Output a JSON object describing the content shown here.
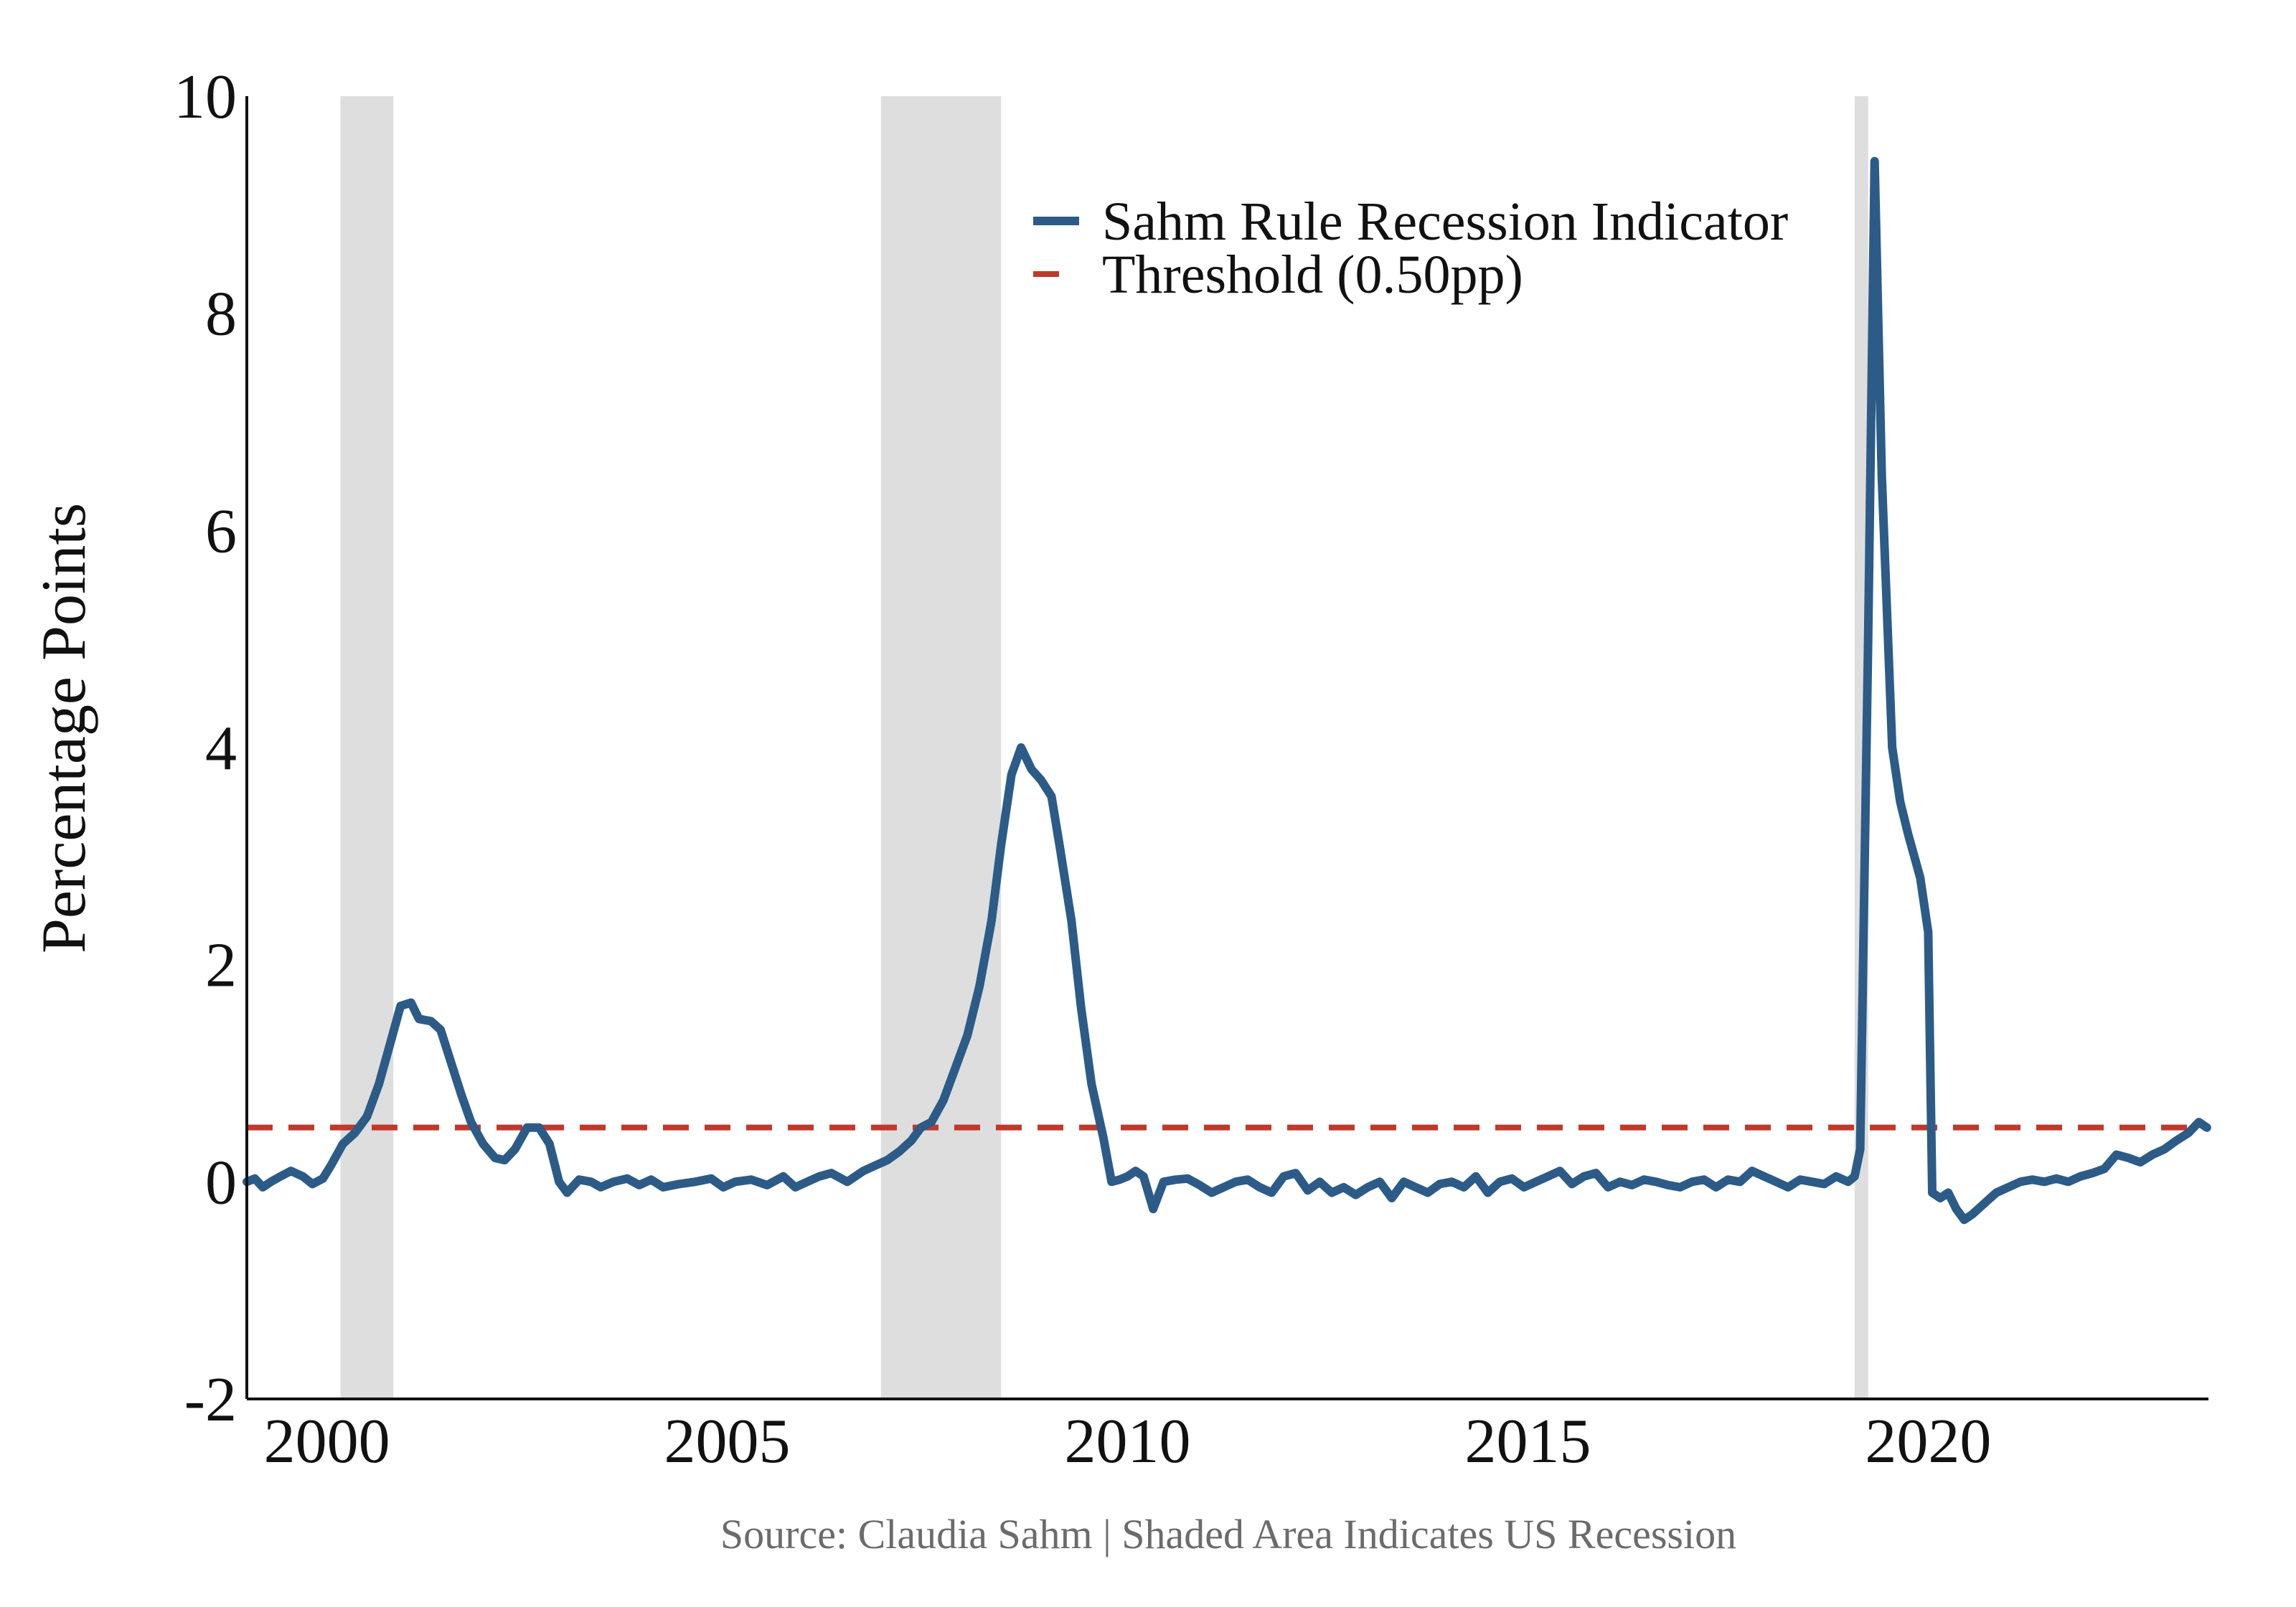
{
  "chart_data": {
    "type": "line",
    "title": "",
    "xlabel": "",
    "ylabel": "Percentage Points",
    "xlim": [
      1999.0,
      2023.5
    ],
    "ylim": [
      -2,
      10
    ],
    "x_ticks": [
      2000,
      2005,
      2010,
      2015,
      2020
    ],
    "x_tick_labels": [
      "2000",
      "2005",
      "2010",
      "2015",
      "2020"
    ],
    "y_ticks": [
      -2,
      0,
      2,
      4,
      6,
      8,
      10
    ],
    "y_tick_labels": [
      "-2",
      "0",
      "2",
      "4",
      "6",
      "8",
      "10"
    ],
    "grid": false,
    "legend_position": "top-right",
    "source": "Source: Claudia Sahm | Shaded Area Indicates US Recession",
    "recessions": [
      {
        "start": 2000.17,
        "end": 2000.83
      },
      {
        "start": 2006.92,
        "end": 2008.42
      },
      {
        "start": 2019.08,
        "end": 2019.25
      }
    ],
    "threshold": {
      "name": "Threshold (0.50pp)",
      "value": 0.5,
      "color": "#c0392b"
    },
    "series": [
      {
        "name": "Sahm Rule Recession Indicator",
        "color": "#2c5b87",
        "points": [
          [
            1999.0,
            0.0
          ],
          [
            1999.1,
            0.03
          ],
          [
            1999.2,
            -0.05
          ],
          [
            1999.3,
            0.0
          ],
          [
            1999.42,
            0.05
          ],
          [
            1999.55,
            0.1
          ],
          [
            1999.7,
            0.05
          ],
          [
            1999.82,
            -0.02
          ],
          [
            1999.95,
            0.03
          ],
          [
            2000.05,
            0.15
          ],
          [
            2000.2,
            0.35
          ],
          [
            2000.35,
            0.45
          ],
          [
            2000.5,
            0.6
          ],
          [
            2000.65,
            0.9
          ],
          [
            2000.8,
            1.3
          ],
          [
            2000.92,
            1.62
          ],
          [
            2001.05,
            1.65
          ],
          [
            2001.15,
            1.5
          ],
          [
            2001.3,
            1.48
          ],
          [
            2001.42,
            1.4
          ],
          [
            2001.55,
            1.1
          ],
          [
            2001.68,
            0.8
          ],
          [
            2001.8,
            0.55
          ],
          [
            2001.95,
            0.35
          ],
          [
            2002.1,
            0.22
          ],
          [
            2002.22,
            0.2
          ],
          [
            2002.35,
            0.3
          ],
          [
            2002.5,
            0.5
          ],
          [
            2002.65,
            0.5
          ],
          [
            2002.78,
            0.35
          ],
          [
            2002.9,
            0.0
          ],
          [
            2003.0,
            -0.1
          ],
          [
            2003.15,
            0.02
          ],
          [
            2003.3,
            0.0
          ],
          [
            2003.42,
            -0.05
          ],
          [
            2003.58,
            0.0
          ],
          [
            2003.75,
            0.03
          ],
          [
            2003.9,
            -0.03
          ],
          [
            2004.05,
            0.02
          ],
          [
            2004.2,
            -0.05
          ],
          [
            2004.4,
            -0.02
          ],
          [
            2004.6,
            0.0
          ],
          [
            2004.8,
            0.03
          ],
          [
            2004.95,
            -0.05
          ],
          [
            2005.1,
            0.0
          ],
          [
            2005.3,
            0.02
          ],
          [
            2005.5,
            -0.03
          ],
          [
            2005.7,
            0.05
          ],
          [
            2005.85,
            -0.05
          ],
          [
            2006.0,
            0.0
          ],
          [
            2006.15,
            0.05
          ],
          [
            2006.3,
            0.08
          ],
          [
            2006.5,
            0.0
          ],
          [
            2006.7,
            0.1
          ],
          [
            2006.85,
            0.15
          ],
          [
            2007.0,
            0.2
          ],
          [
            2007.15,
            0.28
          ],
          [
            2007.3,
            0.38
          ],
          [
            2007.42,
            0.5
          ],
          [
            2007.55,
            0.55
          ],
          [
            2007.7,
            0.75
          ],
          [
            2007.85,
            1.05
          ],
          [
            2008.0,
            1.35
          ],
          [
            2008.15,
            1.8
          ],
          [
            2008.3,
            2.4
          ],
          [
            2008.42,
            3.1
          ],
          [
            2008.55,
            3.75
          ],
          [
            2008.67,
            4.0
          ],
          [
            2008.8,
            3.8
          ],
          [
            2008.92,
            3.7
          ],
          [
            2009.05,
            3.55
          ],
          [
            2009.15,
            3.1
          ],
          [
            2009.3,
            2.4
          ],
          [
            2009.42,
            1.6
          ],
          [
            2009.55,
            0.9
          ],
          [
            2009.7,
            0.4
          ],
          [
            2009.8,
            0.0
          ],
          [
            2009.9,
            0.02
          ],
          [
            2010.0,
            0.05
          ],
          [
            2010.1,
            0.1
          ],
          [
            2010.2,
            0.05
          ],
          [
            2010.32,
            -0.25
          ],
          [
            2010.45,
            0.0
          ],
          [
            2010.6,
            0.02
          ],
          [
            2010.75,
            0.03
          ],
          [
            2010.9,
            -0.03
          ],
          [
            2011.05,
            -0.1
          ],
          [
            2011.2,
            -0.05
          ],
          [
            2011.35,
            0.0
          ],
          [
            2011.5,
            0.02
          ],
          [
            2011.65,
            -0.05
          ],
          [
            2011.8,
            -0.1
          ],
          [
            2011.95,
            0.05
          ],
          [
            2012.1,
            0.08
          ],
          [
            2012.25,
            -0.08
          ],
          [
            2012.4,
            0.0
          ],
          [
            2012.55,
            -0.1
          ],
          [
            2012.7,
            -0.05
          ],
          [
            2012.85,
            -0.12
          ],
          [
            2013.0,
            -0.05
          ],
          [
            2013.15,
            0.0
          ],
          [
            2013.3,
            -0.15
          ],
          [
            2013.45,
            0.0
          ],
          [
            2013.6,
            -0.05
          ],
          [
            2013.75,
            -0.1
          ],
          [
            2013.9,
            -0.02
          ],
          [
            2014.05,
            0.0
          ],
          [
            2014.2,
            -0.05
          ],
          [
            2014.35,
            0.05
          ],
          [
            2014.5,
            -0.1
          ],
          [
            2014.65,
            0.0
          ],
          [
            2014.8,
            0.03
          ],
          [
            2014.95,
            -0.05
          ],
          [
            2015.1,
            0.0
          ],
          [
            2015.25,
            0.05
          ],
          [
            2015.4,
            0.1
          ],
          [
            2015.55,
            -0.02
          ],
          [
            2015.7,
            0.05
          ],
          [
            2015.85,
            0.08
          ],
          [
            2016.0,
            -0.05
          ],
          [
            2016.15,
            0.0
          ],
          [
            2016.3,
            -0.03
          ],
          [
            2016.45,
            0.02
          ],
          [
            2016.6,
            0.0
          ],
          [
            2016.75,
            -0.03
          ],
          [
            2016.9,
            -0.05
          ],
          [
            2017.05,
            0.0
          ],
          [
            2017.2,
            0.02
          ],
          [
            2017.35,
            -0.05
          ],
          [
            2017.5,
            0.02
          ],
          [
            2017.65,
            0.0
          ],
          [
            2017.8,
            0.1
          ],
          [
            2017.95,
            0.05
          ],
          [
            2018.1,
            0.0
          ],
          [
            2018.25,
            -0.05
          ],
          [
            2018.4,
            0.02
          ],
          [
            2018.55,
            0.0
          ],
          [
            2018.7,
            -0.02
          ],
          [
            2018.85,
            0.05
          ],
          [
            2019.0,
            0.0
          ],
          [
            2019.08,
            0.05
          ],
          [
            2019.15,
            0.3
          ],
          [
            2019.25,
            5.0
          ],
          [
            2019.33,
            9.4
          ],
          [
            2019.42,
            6.5
          ],
          [
            2019.55,
            4.0
          ],
          [
            2019.65,
            3.5
          ],
          [
            2019.75,
            3.2
          ],
          [
            2019.9,
            2.8
          ],
          [
            2020.0,
            2.3
          ],
          [
            2020.05,
            -0.1
          ],
          [
            2020.15,
            -0.15
          ],
          [
            2020.25,
            -0.1
          ],
          [
            2020.35,
            -0.25
          ],
          [
            2020.45,
            -0.35
          ],
          [
            2020.55,
            -0.3
          ],
          [
            2020.7,
            -0.2
          ],
          [
            2020.85,
            -0.1
          ],
          [
            2021.0,
            -0.05
          ],
          [
            2021.15,
            0.0
          ],
          [
            2021.3,
            0.02
          ],
          [
            2021.45,
            0.0
          ],
          [
            2021.6,
            0.03
          ],
          [
            2021.75,
            0.0
          ],
          [
            2021.9,
            0.05
          ],
          [
            2022.05,
            0.08
          ],
          [
            2022.2,
            0.12
          ],
          [
            2022.35,
            0.25
          ],
          [
            2022.5,
            0.22
          ],
          [
            2022.65,
            0.18
          ],
          [
            2022.8,
            0.25
          ],
          [
            2022.95,
            0.3
          ],
          [
            2023.1,
            0.38
          ],
          [
            2023.25,
            0.45
          ],
          [
            2023.38,
            0.55
          ],
          [
            2023.48,
            0.5
          ]
        ]
      }
    ]
  }
}
